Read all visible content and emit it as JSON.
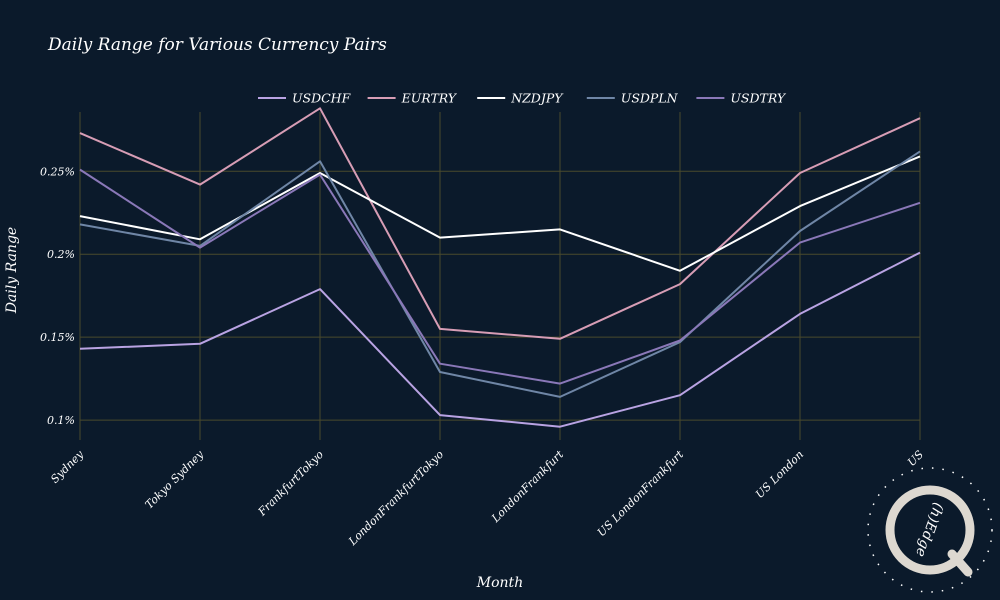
{
  "chart_data": {
    "type": "line",
    "title": "Daily Range for Various Currency Pairs",
    "xlabel": "Month",
    "ylabel": "Daily Range",
    "categories": [
      "Sydney",
      "Tokyo Sydney",
      "FrankfurtTokyo",
      "LondonFrankfurtTokyo",
      "LondonFrankfurt",
      "US LondonFrankfurt",
      "US London",
      "US"
    ],
    "y_ticks": [
      0.1,
      0.15,
      0.2,
      0.25
    ],
    "y_tick_labels": [
      "0.1%",
      "0.15%",
      "0.2%",
      "0.25%"
    ],
    "ylim": [
      0.088,
      0.296
    ],
    "grid": true,
    "legend_position": "top",
    "series": [
      {
        "name": "USDCHF",
        "color": "#b9a3e3",
        "values": [
          0.143,
          0.146,
          0.179,
          0.103,
          0.096,
          0.115,
          0.164,
          0.201
        ]
      },
      {
        "name": "EURTRY",
        "color": "#d79db5",
        "values": [
          0.273,
          0.242,
          0.288,
          0.155,
          0.149,
          0.182,
          0.249,
          0.282
        ]
      },
      {
        "name": "NZDJPY",
        "color": "#ffffff",
        "values": [
          0.223,
          0.209,
          0.249,
          0.21,
          0.215,
          0.19,
          0.229,
          0.259
        ]
      },
      {
        "name": "USDPLN",
        "color": "#6f86a6",
        "values": [
          0.218,
          0.205,
          0.256,
          0.129,
          0.114,
          0.147,
          0.214,
          0.262
        ]
      },
      {
        "name": "USDTRY",
        "color": "#8a78b8",
        "values": [
          0.251,
          0.204,
          0.248,
          0.134,
          0.122,
          0.148,
          0.207,
          0.231
        ]
      }
    ]
  },
  "watermark": {
    "text": "(h)Edge",
    "letter": "Q"
  }
}
